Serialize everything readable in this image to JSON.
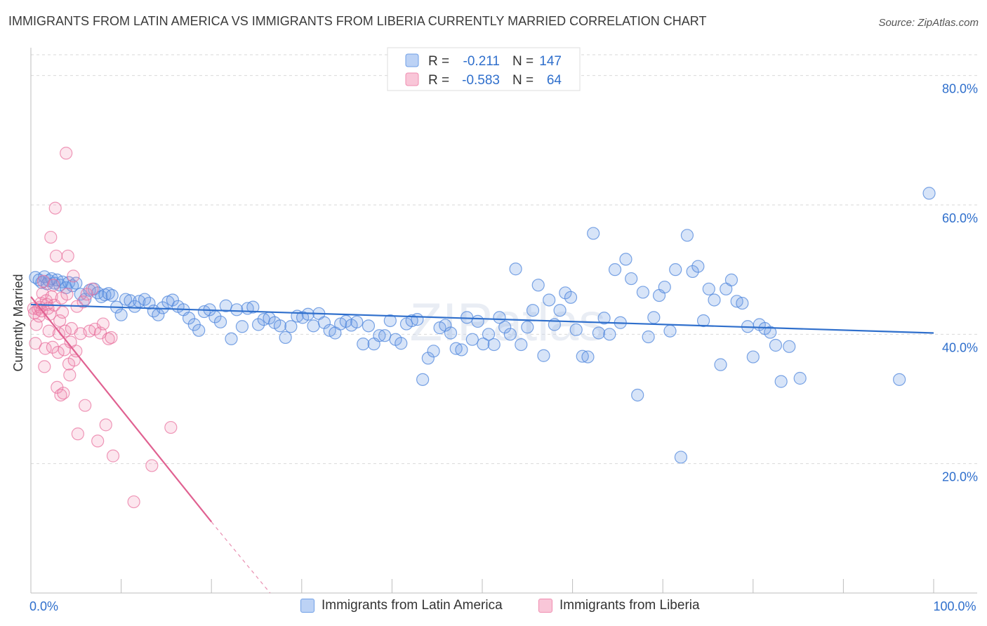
{
  "title": "IMMIGRANTS FROM LATIN AMERICA VS IMMIGRANTS FROM LIBERIA CURRENTLY MARRIED CORRELATION CHART",
  "source": "Source: ZipAtlas.com",
  "watermark": "ZIPatlas",
  "legend_top": [
    {
      "r_label": "R =",
      "r_value": "-0.211",
      "n_label": "N =",
      "n_value": "147",
      "color": "#6f9fe6"
    },
    {
      "r_label": "R =",
      "r_value": "-0.583",
      "n_label": "N =",
      "n_value": "64",
      "color": "#f08db0"
    }
  ],
  "chart_data": {
    "type": "scatter",
    "title": "IMMIGRANTS FROM LATIN AMERICA VS IMMIGRANTS FROM LIBERIA CURRENTLY MARRIED CORRELATION CHART",
    "xlabel": "",
    "ylabel": "Currently Married",
    "xlim": [
      0,
      100
    ],
    "ylim": [
      0,
      83
    ],
    "x_tick_labels": [
      {
        "value": 0,
        "label": "0.0%"
      },
      {
        "value": 100,
        "label": "100.0%"
      }
    ],
    "y_tick_labels": [
      {
        "value": 20,
        "label": "20.0%"
      },
      {
        "value": 40,
        "label": "40.0%"
      },
      {
        "value": 60,
        "label": "60.0%"
      },
      {
        "value": 80,
        "label": "80.0%"
      }
    ],
    "grid": true,
    "legend_position": "top-center",
    "series": [
      {
        "name": "Immigrants from Latin America",
        "color": "#6f9fe6",
        "line_color": "#2f6fcc",
        "trend": {
          "x": [
            0,
            100
          ],
          "y": [
            44.6,
            40.2
          ]
        },
        "points": [
          [
            0.5,
            48.8
          ],
          [
            0.9,
            48.4
          ],
          [
            1.2,
            48.0
          ],
          [
            1.5,
            48.9
          ],
          [
            1.8,
            47.8
          ],
          [
            2.0,
            48.3
          ],
          [
            2.3,
            48.6
          ],
          [
            2.6,
            47.9
          ],
          [
            2.9,
            48.4
          ],
          [
            3.2,
            47.6
          ],
          [
            3.5,
            48.1
          ],
          [
            3.9,
            47.2
          ],
          [
            4.2,
            48.0
          ],
          [
            4.6,
            47.5
          ],
          [
            5.0,
            47.9
          ],
          [
            5.5,
            46.2
          ],
          [
            6.0,
            45.4
          ],
          [
            6.5,
            46.8
          ],
          [
            7.0,
            47.0
          ],
          [
            7.4,
            46.4
          ],
          [
            7.8,
            45.8
          ],
          [
            8.2,
            46.1
          ],
          [
            8.6,
            46.3
          ],
          [
            9.0,
            46.0
          ],
          [
            9.5,
            44.2
          ],
          [
            10.0,
            43.0
          ],
          [
            10.5,
            45.4
          ],
          [
            11.0,
            45.2
          ],
          [
            11.5,
            44.3
          ],
          [
            12.0,
            45.1
          ],
          [
            12.6,
            45.4
          ],
          [
            13.1,
            44.8
          ],
          [
            13.6,
            43.6
          ],
          [
            14.1,
            43.0
          ],
          [
            14.6,
            44.1
          ],
          [
            15.2,
            45.0
          ],
          [
            15.7,
            45.3
          ],
          [
            16.3,
            44.3
          ],
          [
            16.9,
            43.8
          ],
          [
            17.5,
            42.5
          ],
          [
            18.1,
            41.5
          ],
          [
            18.6,
            40.6
          ],
          [
            19.2,
            43.5
          ],
          [
            19.8,
            43.8
          ],
          [
            20.4,
            42.7
          ],
          [
            21.0,
            41.9
          ],
          [
            21.6,
            44.4
          ],
          [
            22.2,
            39.3
          ],
          [
            22.8,
            43.8
          ],
          [
            23.4,
            41.2
          ],
          [
            24.0,
            44.0
          ],
          [
            24.6,
            44.2
          ],
          [
            25.2,
            41.5
          ],
          [
            25.8,
            42.3
          ],
          [
            26.4,
            42.5
          ],
          [
            27.0,
            41.8
          ],
          [
            27.6,
            41.3
          ],
          [
            28.2,
            39.5
          ],
          [
            28.8,
            41.2
          ],
          [
            29.5,
            42.8
          ],
          [
            30.1,
            42.6
          ],
          [
            30.7,
            43.1
          ],
          [
            31.3,
            41.3
          ],
          [
            31.9,
            43.2
          ],
          [
            32.5,
            41.8
          ],
          [
            33.1,
            40.6
          ],
          [
            33.7,
            40.2
          ],
          [
            34.3,
            41.6
          ],
          [
            34.9,
            42.0
          ],
          [
            35.5,
            41.4
          ],
          [
            36.1,
            41.9
          ],
          [
            36.8,
            38.5
          ],
          [
            37.4,
            41.3
          ],
          [
            38.0,
            38.5
          ],
          [
            38.6,
            39.8
          ],
          [
            39.2,
            39.8
          ],
          [
            39.8,
            42.1
          ],
          [
            40.4,
            39.2
          ],
          [
            41.0,
            38.6
          ],
          [
            41.6,
            41.6
          ],
          [
            42.2,
            42.1
          ],
          [
            42.8,
            42.3
          ],
          [
            43.4,
            33.0
          ],
          [
            44.0,
            36.3
          ],
          [
            44.6,
            37.4
          ],
          [
            45.3,
            41.0
          ],
          [
            45.9,
            41.4
          ],
          [
            46.5,
            40.2
          ],
          [
            47.1,
            37.8
          ],
          [
            47.7,
            37.6
          ],
          [
            48.3,
            42.6
          ],
          [
            48.9,
            39.2
          ],
          [
            49.5,
            42.0
          ],
          [
            50.1,
            38.5
          ],
          [
            50.7,
            40.0
          ],
          [
            51.3,
            38.4
          ],
          [
            51.9,
            42.6
          ],
          [
            52.5,
            41.1
          ],
          [
            53.1,
            40.0
          ],
          [
            53.7,
            50.1
          ],
          [
            54.3,
            38.4
          ],
          [
            55.0,
            41.1
          ],
          [
            55.6,
            43.7
          ],
          [
            56.2,
            47.6
          ],
          [
            56.8,
            36.7
          ],
          [
            57.4,
            45.3
          ],
          [
            58.0,
            41.5
          ],
          [
            58.6,
            43.7
          ],
          [
            59.2,
            46.4
          ],
          [
            59.8,
            45.7
          ],
          [
            60.4,
            40.7
          ],
          [
            61.1,
            36.6
          ],
          [
            61.7,
            36.5
          ],
          [
            62.3,
            55.6
          ],
          [
            62.9,
            40.2
          ],
          [
            63.5,
            42.5
          ],
          [
            64.1,
            40.0
          ],
          [
            64.7,
            50.0
          ],
          [
            65.3,
            41.8
          ],
          [
            65.9,
            51.6
          ],
          [
            66.5,
            48.6
          ],
          [
            67.2,
            30.6
          ],
          [
            67.8,
            46.5
          ],
          [
            68.4,
            39.6
          ],
          [
            69.0,
            42.6
          ],
          [
            69.6,
            46.0
          ],
          [
            70.2,
            47.3
          ],
          [
            70.8,
            40.5
          ],
          [
            71.4,
            50.0
          ],
          [
            72.0,
            21.0
          ],
          [
            72.7,
            55.3
          ],
          [
            73.3,
            49.7
          ],
          [
            73.9,
            50.5
          ],
          [
            74.5,
            42.1
          ],
          [
            75.1,
            47.0
          ],
          [
            75.7,
            45.3
          ],
          [
            76.4,
            35.3
          ],
          [
            77.0,
            47.0
          ],
          [
            77.6,
            48.4
          ],
          [
            78.2,
            45.1
          ],
          [
            78.8,
            44.8
          ],
          [
            79.4,
            41.2
          ],
          [
            80.0,
            36.5
          ],
          [
            80.7,
            41.5
          ],
          [
            81.3,
            40.9
          ],
          [
            81.9,
            40.3
          ],
          [
            82.5,
            38.3
          ],
          [
            83.1,
            32.7
          ],
          [
            84.0,
            38.1
          ],
          [
            85.2,
            33.2
          ],
          [
            96.2,
            33.0
          ],
          [
            99.5,
            61.8
          ]
        ]
      },
      {
        "name": "Immigrants from Liberia",
        "color": "#f08db0",
        "line_color": "#e06191",
        "trend": {
          "x": [
            0,
            20
          ],
          "y": [
            45.8,
            11.0
          ]
        },
        "trend_dashed": {
          "x": [
            20,
            26.5
          ],
          "y": [
            11.0,
            0.0
          ]
        },
        "points": [
          [
            0.3,
            44.0
          ],
          [
            0.4,
            43.3
          ],
          [
            0.5,
            38.6
          ],
          [
            0.6,
            41.5
          ],
          [
            0.8,
            43.9
          ],
          [
            0.9,
            42.8
          ],
          [
            1.0,
            44.2
          ],
          [
            1.1,
            44.8
          ],
          [
            1.2,
            43.6
          ],
          [
            1.3,
            46.3
          ],
          [
            1.4,
            48.2
          ],
          [
            1.5,
            35.0
          ],
          [
            1.6,
            37.8
          ],
          [
            1.7,
            45.2
          ],
          [
            1.8,
            44.6
          ],
          [
            1.9,
            44.0
          ],
          [
            2.0,
            40.5
          ],
          [
            2.1,
            43.1
          ],
          [
            2.2,
            55.0
          ],
          [
            2.3,
            45.8
          ],
          [
            2.4,
            38.0
          ],
          [
            2.5,
            47.6
          ],
          [
            2.6,
            44.5
          ],
          [
            2.7,
            59.5
          ],
          [
            2.8,
            52.1
          ],
          [
            2.9,
            31.8
          ],
          [
            3.0,
            37.2
          ],
          [
            3.1,
            40.1
          ],
          [
            3.2,
            42.1
          ],
          [
            3.3,
            30.6
          ],
          [
            3.4,
            45.6
          ],
          [
            3.5,
            43.4
          ],
          [
            3.6,
            30.9
          ],
          [
            3.7,
            37.6
          ],
          [
            3.8,
            40.5
          ],
          [
            3.9,
            68.0
          ],
          [
            4.0,
            46.2
          ],
          [
            4.1,
            52.1
          ],
          [
            4.2,
            35.4
          ],
          [
            4.3,
            33.7
          ],
          [
            4.4,
            38.8
          ],
          [
            4.5,
            40.9
          ],
          [
            4.7,
            49.0
          ],
          [
            4.8,
            36.0
          ],
          [
            5.0,
            37.4
          ],
          [
            5.1,
            44.3
          ],
          [
            5.2,
            24.6
          ],
          [
            5.5,
            40.1
          ],
          [
            5.8,
            45.0
          ],
          [
            6.0,
            29.0
          ],
          [
            6.2,
            46.2
          ],
          [
            6.5,
            40.5
          ],
          [
            6.8,
            47.0
          ],
          [
            7.1,
            40.8
          ],
          [
            7.4,
            23.5
          ],
          [
            7.7,
            40.2
          ],
          [
            8.0,
            41.6
          ],
          [
            8.3,
            26.0
          ],
          [
            8.6,
            39.3
          ],
          [
            8.9,
            39.5
          ],
          [
            9.1,
            21.2
          ],
          [
            11.4,
            14.1
          ],
          [
            13.4,
            19.7
          ],
          [
            15.5,
            25.6
          ]
        ]
      }
    ]
  }
}
